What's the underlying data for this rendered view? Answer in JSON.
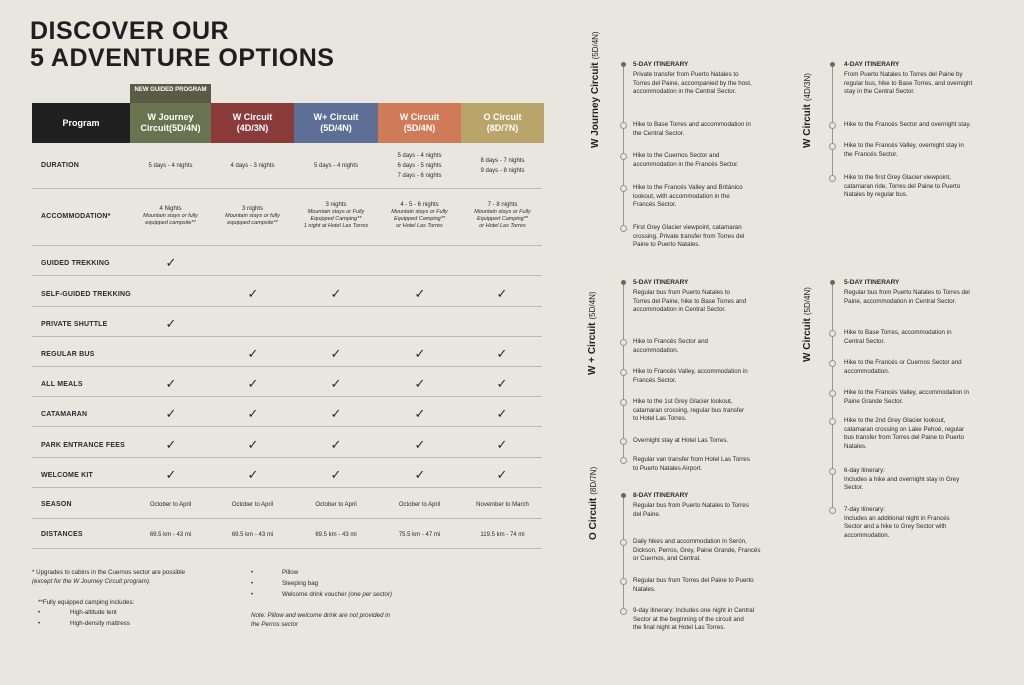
{
  "title": {
    "line1": "DISCOVER OUR",
    "line2": "5 ADVENTURE OPTIONS"
  },
  "colors": {
    "background": "#e9e6e0",
    "program_header": "#1f1f1f",
    "w_journey": "#6b7250",
    "w_circuit_1": "#8b3a3a",
    "w_plus": "#5e6f97",
    "w_circuit_2": "#cf7b58",
    "o_circuit": "#b9a469",
    "new_tag": "#5a5a45"
  },
  "table": {
    "new_tag": "NEW GUIDED PROGRAM",
    "program_label": "Program",
    "columns": [
      {
        "name": "W Journey",
        "sub": "Circuit(5D/4N)"
      },
      {
        "name": "W Circuit",
        "sub": "(4D/3N)"
      },
      {
        "name": "W+ Circuit",
        "sub": "(5D/4N)"
      },
      {
        "name": "W Circuit",
        "sub": "(5D/4N)"
      },
      {
        "name": "O Circuit",
        "sub": "(8D/7N)"
      }
    ],
    "rows": {
      "duration": {
        "label": "DURATION",
        "values": [
          "5 days - 4 nights",
          "4 days - 3 nights",
          "5 days - 4 nights",
          "5 days - 4 nights",
          "8 days - 7 nights"
        ],
        "extra_col4": [
          "6 days - 5 nights",
          "7 days - 6 nights"
        ],
        "extra_col5": [
          "9 days - 8 nights"
        ]
      },
      "accommodation": {
        "label": "ACCOMMODATION*",
        "values": [
          "4 Nights",
          "3 nights",
          "3 nights",
          "4 - 5 - 6 nights",
          "7 - 8 nights"
        ],
        "details": [
          [
            "Mountain stays or fully",
            "equipped campsite**"
          ],
          [
            "Mountain stays or fully",
            "equipped campsite**"
          ],
          [
            "Mountain stays or Fully",
            "Equipped Camping**",
            "1 night at Hotel Las Torres"
          ],
          [
            "Mountain stays or Fully",
            "Equipped Camping**",
            "or Hotel Las Torres"
          ],
          [
            "Mountain stays or Fully",
            "Equipped Camping**",
            "or Hotel Las Torres"
          ]
        ]
      },
      "guided_trekking": {
        "label": "GUIDED TREKKING",
        "checks": [
          true,
          false,
          false,
          false,
          false
        ]
      },
      "self_guided": {
        "label": "SELF-GUIDED TREKKING",
        "checks": [
          false,
          true,
          true,
          true,
          true
        ]
      },
      "private_shuttle": {
        "label": "PRIVATE SHUTTLE",
        "checks": [
          true,
          false,
          false,
          false,
          false
        ]
      },
      "regular_bus": {
        "label": "REGULAR BUS",
        "checks": [
          false,
          true,
          true,
          true,
          true
        ]
      },
      "all_meals": {
        "label": "ALL MEALS",
        "checks": [
          true,
          true,
          true,
          true,
          true
        ]
      },
      "catamaran": {
        "label": "CATAMARAN",
        "checks": [
          true,
          true,
          true,
          true,
          true
        ]
      },
      "park_fees": {
        "label": "PARK ENTRANCE FEES",
        "checks": [
          true,
          true,
          true,
          true,
          true
        ]
      },
      "welcome_kit": {
        "label": "WELCOME KIT",
        "checks": [
          true,
          true,
          true,
          true,
          true
        ]
      },
      "season": {
        "label": "SEASON",
        "values": [
          "October to April",
          "October to April",
          "October to April",
          "October to April",
          "November to March"
        ]
      },
      "distances": {
        "label": "DISTANCES",
        "values": [
          "69.5 km - 43 mi",
          "69.5 km - 43 mi",
          "69.5 km - 43 mi",
          "75.5 km - 47 mi",
          "119.5 km - 74 mi"
        ]
      }
    },
    "check_glyph": "✓"
  },
  "notes": {
    "upgrade": "* Upgrades to cabins in the Cuernos sector are possible",
    "upgrade_italic": "(except for the W Journey Circuit program).",
    "camping_intro": "**Fully equipped camping includes:",
    "camping_items": [
      "High-altitude tent",
      "High-density mattress"
    ],
    "right_items": [
      "Pillow",
      "Sleeping bag",
      "Welcome drink voucher"
    ],
    "right_item3_italic": "(one per sector)",
    "pillow_note": [
      "Note: Pillow and welcome drink are not provided in",
      "the Perros sector"
    ],
    "bullet": "•"
  },
  "itineraries": {
    "w_journey": {
      "label": "W Journey Circuit",
      "label_sub": "(5D/4N)",
      "heading": "5-DAY ITINERARY",
      "steps": [
        [
          "Private transfer from Puerto Natales to",
          "Torres del Paine, accompanied by the host,",
          "accommodation in the Central Sector."
        ],
        [
          "Hike to Base Torres and accommodation in",
          "the Central Sector."
        ],
        [
          "Hike to the Cuernos Sector and",
          "accommodation in the Francés Sector."
        ],
        [
          "Hike to the Francés Valley and Británico",
          "lookout, with accommodation in the",
          "Francés Sector."
        ],
        [
          "First Grey Glacier viewpoint, catamaran",
          "crossing. Private transfer from Torres del",
          "Paine to Puerto Natales."
        ]
      ]
    },
    "w_4d": {
      "label": "W Circuit",
      "label_sub": "(4D/3N)",
      "heading": "4-DAY ITINERARY",
      "steps": [
        [
          "From Puerto Natales to Torres del Paine by",
          "regular bus, hike to Base Torres, and overnight",
          "stay in the Central Sector."
        ],
        [
          "Hike to the Francés Sector and overnight stay."
        ],
        [
          "Hike to the Francés Valley, overnight stay in",
          "the Francés Sector."
        ],
        [
          "Hike to the first Grey Glacier viewpoint,",
          "catamaran ride, Torres del Paine to Puerto",
          "Natales by regular bus."
        ]
      ]
    },
    "w_plus": {
      "label": "W + Circuit",
      "label_sub": "(5D/4N)",
      "heading": "5-DAY ITINERARY",
      "steps": [
        [
          "Regular bus from Puerto Natales to",
          "Torres del Paine, hike to Base Torres and",
          "accommodation in Central Sector."
        ],
        [
          "Hike to Francés Sector and",
          "accommodation."
        ],
        [
          "Hike to Francés Valley, accommodation in",
          "Francés Sector."
        ],
        [
          "Hike to the 1st Grey Glacier lookout,",
          "catamaran crossing, regular bus transfer",
          "to Hotel Las Torres."
        ],
        [
          "Overnight stay at Hotel Las Torres."
        ],
        [
          "Regular van transfer from Hotel Las Torres",
          "to Puerto Natales Airport."
        ]
      ]
    },
    "w_5d": {
      "label": "W Circuit",
      "label_sub": "(5D/4N)",
      "heading": "5-DAY ITINERARY",
      "steps": [
        [
          "Regular bus from Puerto Natales to Torres del",
          "Paine, accommodation in Central Sector."
        ],
        [
          "Hike to Base Torres, accommodation in",
          "Central Sector."
        ],
        [
          "Hike to the Francés or Cuernos Sector and",
          "accommodation."
        ],
        [
          "Hike to the Francés Valley, accommodation in",
          "Paine Grande Sector."
        ],
        [
          "Hike to the 2nd Grey Glacier lookout,",
          "catamaran crossing on Lake Pehoé, regular",
          "bus transfer from Torres del Paine to Puerto",
          "Natales."
        ],
        [
          "6-day itinerary:",
          "Includes a hike and overnight stay in Grey",
          "Sector."
        ],
        [
          "7-day itinerary:",
          "Includes an additional night in Francés",
          "Sector and a hike to Grey Sector with",
          "accommodation."
        ]
      ]
    },
    "o_circuit": {
      "label": "O Circuit",
      "label_sub": "(8D/7N)",
      "heading": "8-DAY ITINERARY",
      "steps": [
        [
          "Regular bus from Puerto Natales to Torres",
          "del Paine."
        ],
        [
          "Daily hikes and accommodation in Serón,",
          "Dickson, Perros, Grey, Paine Grande, Francés",
          "or Cuernos, and Central."
        ],
        [
          "Regular bus from Torres del Paine to Puerto",
          "Natales."
        ],
        [
          "9-day itinerary: Includes one night in Central",
          "Sector at the beginning of the circuit and",
          "the final night at Hotel Las Torres."
        ]
      ]
    }
  }
}
